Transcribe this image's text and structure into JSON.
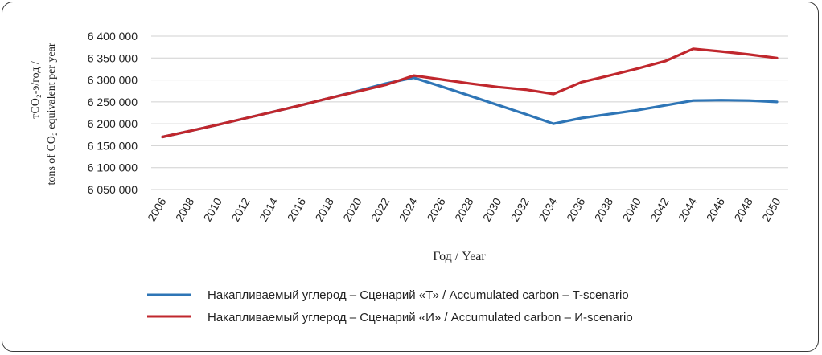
{
  "chart_data": {
    "type": "line",
    "xlabel": "Год / Year",
    "ylabel_line1": "тCO₂-э/год /",
    "ylabel_line2": "tons of CO₂ equivalent per year",
    "ylim": [
      6050000,
      6400000
    ],
    "y_ticks": [
      6050000,
      6100000,
      6150000,
      6200000,
      6250000,
      6300000,
      6350000,
      6400000
    ],
    "y_tick_labels": [
      "6 050 000",
      "6 100 000",
      "6 150 000",
      "6 200 000",
      "6 250 000",
      "6 300 000",
      "6 350 000",
      "6 400 000"
    ],
    "x_ticks": [
      2006,
      2008,
      2010,
      2012,
      2014,
      2016,
      2018,
      2020,
      2022,
      2024,
      2026,
      2028,
      2030,
      2032,
      2034,
      2036,
      2038,
      2040,
      2042,
      2044,
      2046,
      2048,
      2050
    ],
    "x_tick_labels": [
      "2006",
      "2008",
      "2010",
      "2012",
      "2014",
      "2016",
      "2018",
      "2020",
      "2022",
      "2024",
      "2026",
      "2028",
      "2030",
      "2032",
      "2034",
      "2036",
      "2038",
      "2040",
      "2042",
      "2044",
      "2046",
      "2048",
      "2050"
    ],
    "grid": true,
    "legend_position": "bottom",
    "series": [
      {
        "name": "Накапливаемый углерод – Сценарий «Т» / Accumulated carbon – T-scenario",
        "color": "#2e75b6",
        "x": [
          2006,
          2008,
          2010,
          2012,
          2014,
          2016,
          2018,
          2020,
          2022,
          2024,
          2026,
          2028,
          2030,
          2032,
          2034,
          2036,
          2038,
          2040,
          2042,
          2044,
          2046,
          2048,
          2050
        ],
        "values": [
          6170000,
          6184000,
          6198000,
          6213000,
          6228000,
          6243000,
          6259000,
          6275000,
          6292000,
          6305000,
          6285000,
          6264000,
          6243000,
          6222000,
          6200000,
          6213000,
          6222000,
          6231000,
          6242000,
          6253000,
          6254000,
          6253000,
          6250000
        ]
      },
      {
        "name": "Накапливаемый углерод  – Сценарий «И» / Accumulated carbon – И-scenario",
        "color": "#c0272d",
        "x": [
          2006,
          2008,
          2010,
          2012,
          2014,
          2016,
          2018,
          2020,
          2022,
          2024,
          2026,
          2028,
          2030,
          2032,
          2034,
          2036,
          2038,
          2040,
          2042,
          2044,
          2046,
          2048,
          2050
        ],
        "values": [
          6170000,
          6184000,
          6198000,
          6213000,
          6228000,
          6243000,
          6259000,
          6274000,
          6289000,
          6310000,
          6301000,
          6292000,
          6284000,
          6278000,
          6268000,
          6295000,
          6310000,
          6326000,
          6343000,
          6371000,
          6365000,
          6358000,
          6350000
        ]
      }
    ]
  }
}
